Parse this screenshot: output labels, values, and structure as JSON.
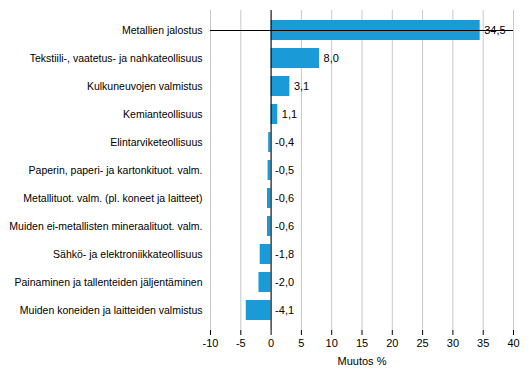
{
  "chart_data": {
    "type": "bar",
    "orientation": "horizontal",
    "categories": [
      "Metallien jalostus",
      "Tekstiili-, vaatetus- ja nahkateollisuus",
      "Kulkuneuvojen valmistus",
      "Kemianteollisuus",
      "Elintarviketeollisuus",
      "Paperin, paperi- ja kartonkituot. valm.",
      "Metallituot. valm. (pl. koneet ja laitteet)",
      "Muiden ei-metallisten mineraalituot. valm.",
      "Sähkö- ja elektroniikkateollisuus",
      "Painaminen ja tallenteiden jäljentäminen",
      "Muiden koneiden ja laitteiden valmistus"
    ],
    "values": [
      34.5,
      8.0,
      3.1,
      1.1,
      -0.4,
      -0.5,
      -0.6,
      -0.6,
      -1.8,
      -2.0,
      -4.1
    ],
    "value_labels": [
      "34,5",
      "8,0",
      "3,1",
      "1,1",
      "-0,4",
      "-0,5",
      "-0,6",
      "-0,6",
      "-1,8",
      "-2,0",
      "-4,1"
    ],
    "data_labels": true,
    "color": "#1a9ad6",
    "xlabel": "Muutos %",
    "xlim": [
      -10,
      40
    ],
    "xticks": [
      -10,
      -5,
      0,
      5,
      10,
      15,
      20,
      25,
      30,
      35,
      40
    ],
    "grid": true
  }
}
